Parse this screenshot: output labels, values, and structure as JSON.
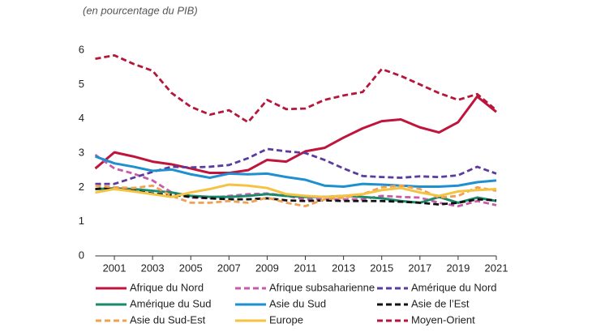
{
  "chart_data": {
    "type": "line",
    "subtitle": "(en pourcentage du PIB)",
    "x": [
      2000,
      2001,
      2002,
      2003,
      2004,
      2005,
      2006,
      2007,
      2008,
      2009,
      2010,
      2011,
      2012,
      2013,
      2014,
      2015,
      2016,
      2017,
      2018,
      2019,
      2020,
      2021
    ],
    "xlim": [
      2000,
      2021
    ],
    "xticks": [
      2001,
      2003,
      2005,
      2007,
      2009,
      2011,
      2013,
      2015,
      2017,
      2019,
      2021
    ],
    "ylim": [
      0,
      6
    ],
    "yticks": [
      0,
      1,
      2,
      3,
      4,
      5,
      6
    ],
    "grid": false,
    "series": [
      {
        "name": "Afrique du Nord",
        "color": "#c0143c",
        "style": "solid",
        "values": [
          2.55,
          3.02,
          2.9,
          2.75,
          2.67,
          2.55,
          2.42,
          2.42,
          2.5,
          2.8,
          2.75,
          3.05,
          3.15,
          3.45,
          3.72,
          3.93,
          3.98,
          3.75,
          3.6,
          3.9,
          4.65,
          4.2
        ]
      },
      {
        "name": "Afrique subsaharienne",
        "color": "#c75aa9",
        "style": "dashed",
        "values": [
          2.95,
          2.55,
          2.4,
          2.2,
          1.85,
          1.7,
          1.68,
          1.75,
          1.8,
          1.82,
          1.75,
          1.65,
          1.65,
          1.65,
          1.65,
          1.75,
          1.72,
          1.7,
          1.55,
          1.45,
          1.6,
          1.48
        ]
      },
      {
        "name": "Amérique du Nord",
        "color": "#5b3b9e",
        "style": "dashed",
        "values": [
          2.1,
          2.1,
          2.28,
          2.45,
          2.6,
          2.58,
          2.6,
          2.65,
          2.85,
          3.12,
          3.05,
          3.0,
          2.8,
          2.55,
          2.33,
          2.3,
          2.28,
          2.32,
          2.3,
          2.35,
          2.6,
          2.4
        ]
      },
      {
        "name": "Amérique du Sud",
        "color": "#1a8a6a",
        "style": "solid",
        "values": [
          1.95,
          1.97,
          1.95,
          1.9,
          1.85,
          1.75,
          1.72,
          1.72,
          1.75,
          1.8,
          1.75,
          1.72,
          1.72,
          1.75,
          1.72,
          1.68,
          1.6,
          1.55,
          1.72,
          1.55,
          1.7,
          1.6
        ]
      },
      {
        "name": "Asie du Sud",
        "color": "#1e90d0",
        "style": "solid",
        "values": [
          2.9,
          2.7,
          2.6,
          2.48,
          2.52,
          2.38,
          2.28,
          2.4,
          2.38,
          2.4,
          2.3,
          2.22,
          2.05,
          2.02,
          2.1,
          2.08,
          2.05,
          2.02,
          2.02,
          2.05,
          2.15,
          2.2
        ]
      },
      {
        "name": "Asie de l’Est",
        "color": "#111111",
        "style": "dashed",
        "values": [
          1.95,
          2.0,
          1.9,
          1.82,
          1.78,
          1.72,
          1.68,
          1.65,
          1.65,
          1.68,
          1.62,
          1.6,
          1.62,
          1.6,
          1.6,
          1.6,
          1.58,
          1.55,
          1.5,
          1.55,
          1.65,
          1.62
        ]
      },
      {
        "name": "Asie du Sud-Est",
        "color": "#f0a050",
        "style": "dashed",
        "values": [
          2.05,
          2.0,
          1.98,
          2.05,
          1.75,
          1.55,
          1.55,
          1.6,
          1.55,
          1.7,
          1.55,
          1.45,
          1.65,
          1.7,
          1.8,
          2.0,
          2.05,
          1.95,
          1.7,
          1.75,
          2.0,
          1.9
        ]
      },
      {
        "name": "Europe",
        "color": "#f5c242",
        "style": "solid",
        "values": [
          1.85,
          1.95,
          1.88,
          1.8,
          1.72,
          1.85,
          1.95,
          2.08,
          2.05,
          1.98,
          1.8,
          1.75,
          1.72,
          1.75,
          1.8,
          1.92,
          1.98,
          1.85,
          1.75,
          1.88,
          1.92,
          1.95
        ]
      },
      {
        "name": "Moyen-Orient",
        "color": "#b5163a",
        "style": "dashed",
        "values": [
          5.75,
          5.85,
          5.6,
          5.4,
          4.75,
          4.35,
          4.12,
          4.25,
          3.9,
          4.55,
          4.28,
          4.3,
          4.55,
          4.68,
          4.78,
          5.45,
          5.25,
          5.0,
          4.75,
          4.55,
          4.72,
          4.25
        ]
      }
    ]
  }
}
